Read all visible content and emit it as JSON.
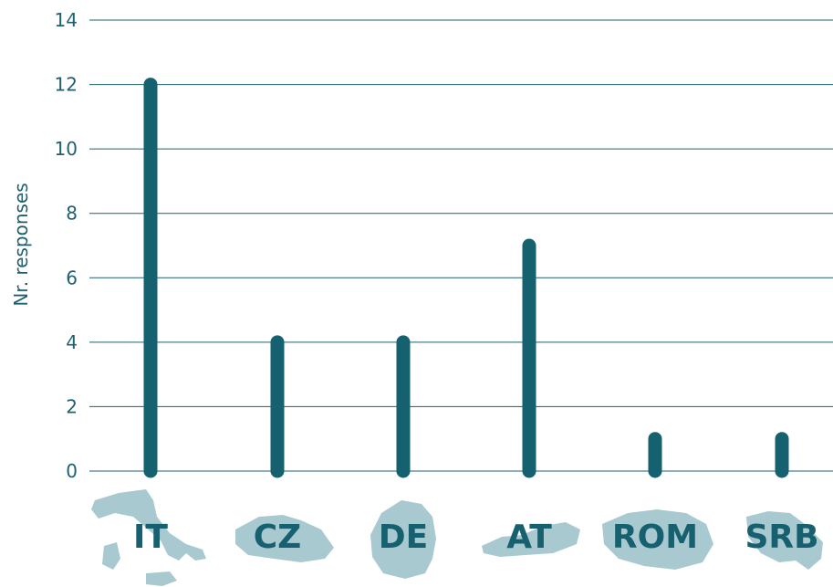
{
  "chart_data": {
    "type": "bar",
    "categories": [
      "IT",
      "CZ",
      "DE",
      "AT",
      "ROM",
      "SRB"
    ],
    "values": [
      12,
      4,
      4,
      7,
      1,
      1
    ],
    "ylabel": "Nr. responses",
    "xlabel": "",
    "title": "",
    "ylim": [
      0,
      14
    ],
    "yticks": [
      0,
      2,
      4,
      6,
      8,
      10,
      12,
      14
    ],
    "grid": true,
    "legend": "none"
  },
  "colors": {
    "bar": "#15616f",
    "grid": "#1f5f70",
    "tick_text": "#1f5f70",
    "category_text": "#17606f",
    "country_silhouette": "#a8c9cf"
  },
  "icons": [
    "italy-map-icon",
    "czechia-map-icon",
    "germany-map-icon",
    "austria-map-icon",
    "romania-map-icon",
    "serbia-map-icon"
  ]
}
